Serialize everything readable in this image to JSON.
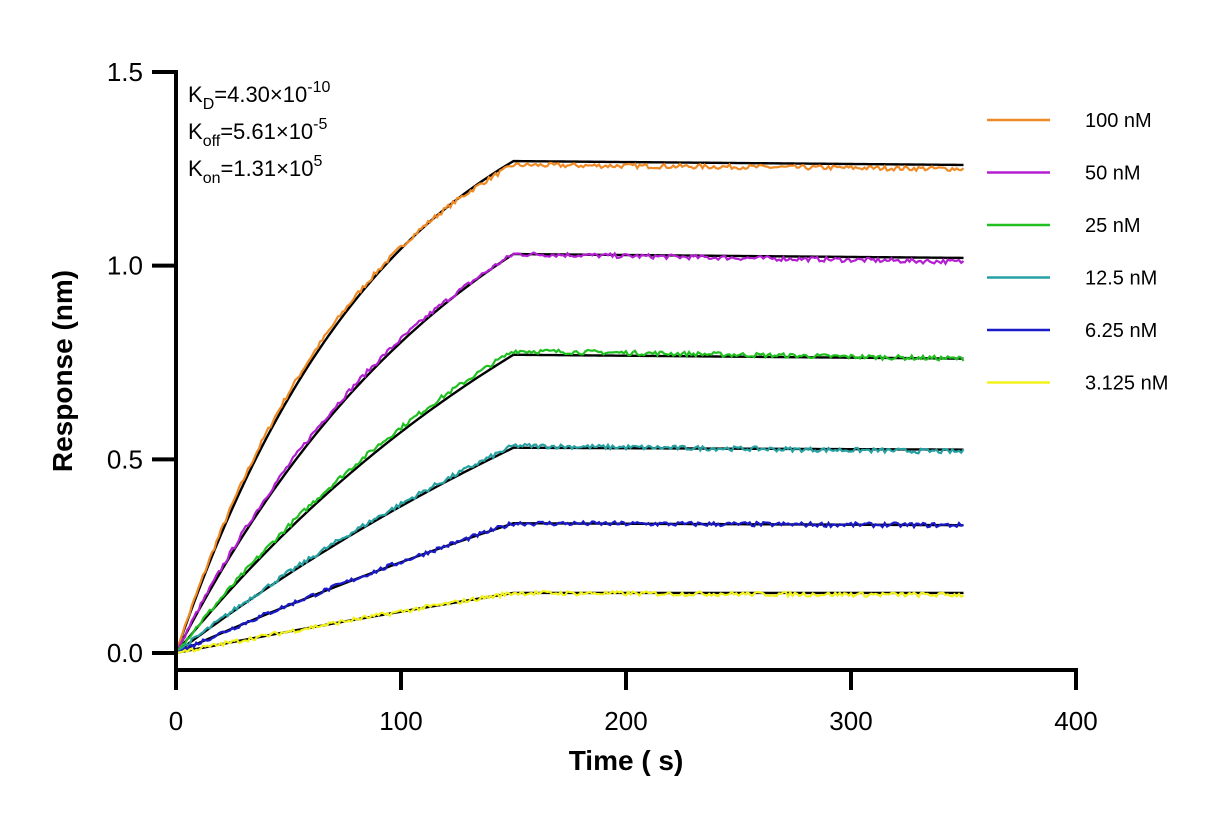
{
  "chart_data": {
    "type": "line",
    "xlabel": "Time ( s)",
    "ylabel": "Response (nm)",
    "xlim": [
      0,
      400
    ],
    "ylim": [
      0,
      1.5
    ],
    "x_ticks": [
      0,
      100,
      200,
      300,
      400
    ],
    "x_tick_labels": [
      "0",
      "100",
      "200",
      "300",
      "400"
    ],
    "y_ticks": [
      0,
      0.5,
      1.0,
      1.5
    ],
    "y_tick_labels": [
      "0.0",
      "0.5",
      "1.0",
      "1.5"
    ],
    "legend_position": "right",
    "association_end_s": 150,
    "dissociation_end_s": 350,
    "annotations": [
      {
        "symbol": "K",
        "sub": "D",
        "eq": "=4.30×10",
        "sup": "-10"
      },
      {
        "symbol": "K",
        "sub": "off",
        "eq": "=5.61×10",
        "sup": "-5"
      },
      {
        "symbol": "K",
        "sub": "on",
        "eq": "=1.31×10",
        "sup": "5"
      }
    ],
    "fit_color": "#000000",
    "series": [
      {
        "name": "100 nM",
        "color": "#F08A24",
        "fit_at_150": 1.27,
        "fit_at_350": 1.26,
        "obs_at_150": 1.26,
        "obs_at_350": 1.25,
        "shape": 1.6
      },
      {
        "name": "50 nM",
        "color": "#B31FD1",
        "fit_at_150": 1.03,
        "fit_at_350": 1.02,
        "obs_at_150": 1.03,
        "obs_at_350": 1.01,
        "shape": 1.1
      },
      {
        "name": "25 nM",
        "color": "#20C020",
        "fit_at_150": 0.77,
        "fit_at_350": 0.76,
        "obs_at_150": 0.78,
        "obs_at_350": 0.76,
        "shape": 0.7
      },
      {
        "name": "12.5 nM",
        "color": "#26A0A0",
        "fit_at_150": 0.53,
        "fit_at_350": 0.525,
        "obs_at_150": 0.535,
        "obs_at_350": 0.52,
        "shape": 0.45
      },
      {
        "name": "6.25 nM",
        "color": "#1A1AC8",
        "fit_at_150": 0.335,
        "fit_at_350": 0.33,
        "obs_at_150": 0.335,
        "obs_at_350": 0.33,
        "shape": 0.3
      },
      {
        "name": "3.125 nM",
        "color": "#F2F21E",
        "fit_at_150": 0.155,
        "fit_at_350": 0.155,
        "obs_at_150": 0.155,
        "obs_at_350": 0.15,
        "shape": 0.2
      }
    ]
  }
}
